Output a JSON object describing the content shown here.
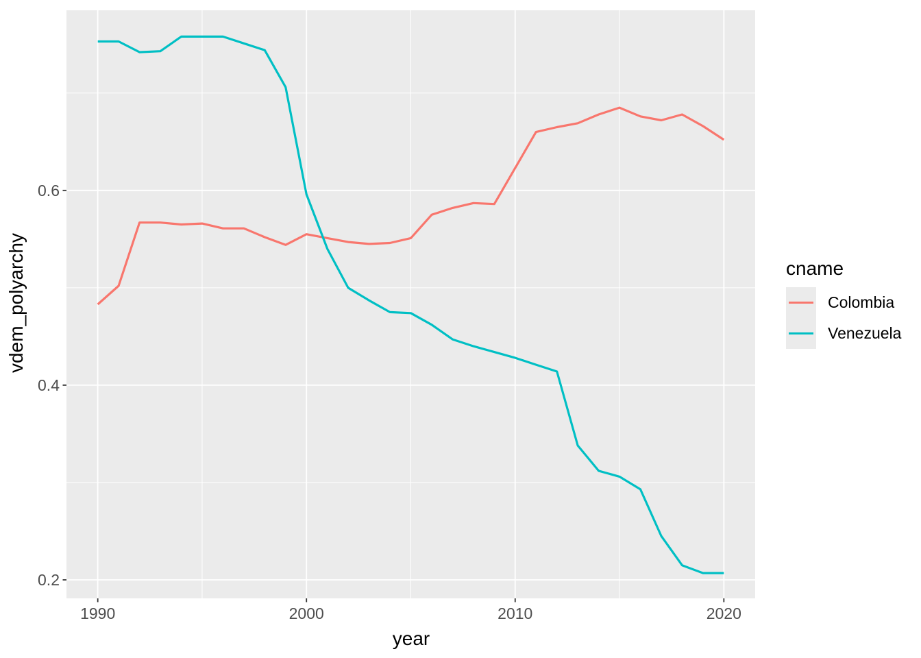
{
  "figure": {
    "kind": "ggplot-style line chart",
    "background": "#FFFFFF"
  },
  "style": {
    "panel_fill": "#EBEBEB",
    "grid_color": "#FFFFFF",
    "tick_mark_color": "#333333",
    "tick_label_color": "#4D4D4D",
    "axis_title_color": "#000000"
  },
  "legend": {
    "title": "cname",
    "items": [
      {
        "label": "Colombia",
        "color": "#F8766D"
      },
      {
        "label": "Venezuela",
        "color": "#00BFC4"
      }
    ]
  },
  "chart_data": {
    "type": "line",
    "title": "",
    "xlabel": "year",
    "ylabel": "vdem_polyarchy",
    "legend_title": "cname",
    "legend_position": "right",
    "grid": "white major+minor gridlines on grey panel",
    "x": [
      1990,
      1991,
      1992,
      1993,
      1994,
      1995,
      1996,
      1997,
      1998,
      1999,
      2000,
      2001,
      2002,
      2003,
      2004,
      2005,
      2006,
      2007,
      2008,
      2009,
      2010,
      2011,
      2012,
      2013,
      2014,
      2015,
      2016,
      2017,
      2018,
      2019,
      2020
    ],
    "series": [
      {
        "name": "Colombia",
        "color": "#F8766D",
        "values": [
          0.483,
          0.502,
          0.567,
          0.567,
          0.565,
          0.566,
          0.561,
          0.561,
          0.552,
          0.544,
          0.555,
          0.551,
          0.547,
          0.545,
          0.546,
          0.551,
          0.575,
          0.582,
          0.587,
          0.586,
          0.623,
          0.66,
          0.665,
          0.669,
          0.678,
          0.685,
          0.676,
          0.672,
          0.678,
          0.666,
          0.652
        ]
      },
      {
        "name": "Venezuela",
        "color": "#00BFC4",
        "values": [
          0.753,
          0.753,
          0.742,
          0.743,
          0.758,
          0.758,
          0.758,
          0.751,
          0.744,
          0.706,
          0.596,
          0.54,
          0.5,
          0.487,
          0.475,
          0.474,
          0.462,
          0.447,
          0.44,
          0.434,
          0.428,
          0.421,
          0.414,
          0.338,
          0.312,
          0.306,
          0.293,
          0.245,
          0.215,
          0.207,
          0.207
        ]
      }
    ],
    "xlim": [
      1988.5,
      2021.5
    ],
    "ylim": [
      0.181,
      0.785
    ],
    "x_ticks": {
      "values": [
        1990,
        2000,
        2010,
        2020
      ],
      "labels": [
        "1990",
        "2000",
        "2010",
        "2020"
      ]
    },
    "y_ticks": {
      "values": [
        0.2,
        0.4,
        0.6
      ],
      "labels": [
        "0.2",
        "0.4",
        "0.6"
      ]
    },
    "x_minor": [
      1995,
      2005,
      2015
    ],
    "y_minor": [
      0.3,
      0.5,
      0.7
    ]
  }
}
